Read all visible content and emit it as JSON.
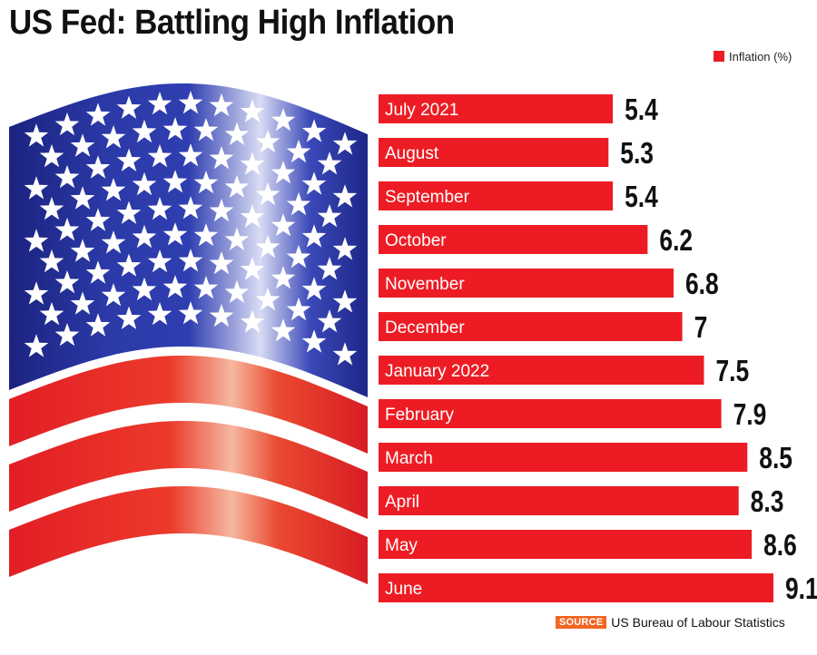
{
  "title": "US Fed: Battling High Inflation",
  "legend": {
    "label": "Inflation (%)"
  },
  "source": {
    "tag": "SOURCE",
    "text": "US Bureau of Labour Statistics"
  },
  "colors": {
    "bar": "#ed1c24",
    "bar_text": "#ffffff",
    "value_text": "#111111",
    "flag_blue": "#1e2a8c",
    "flag_red": "#e8222b",
    "source_tag": "#f26522"
  },
  "chart_data": {
    "type": "bar",
    "orientation": "horizontal",
    "title": "US Fed: Battling High Inflation",
    "xlabel": "",
    "ylabel": "",
    "series": [
      {
        "name": "Inflation (%)",
        "values": [
          5.4,
          5.3,
          5.4,
          6.2,
          6.8,
          7,
          7.5,
          7.9,
          8.5,
          8.3,
          8.6,
          9.1
        ]
      }
    ],
    "categories": [
      "July 2021",
      "August",
      "September",
      "October",
      "November",
      "December",
      "January 2022",
      "February",
      "March",
      "April",
      "May",
      "June"
    ],
    "value_labels": [
      "5.4",
      "5.3",
      "5.4",
      "6.2",
      "6.8",
      "7",
      "7.5",
      "7.9",
      "8.5",
      "8.3",
      "8.6",
      "9.1"
    ],
    "legend": "top-right",
    "grid": false
  }
}
